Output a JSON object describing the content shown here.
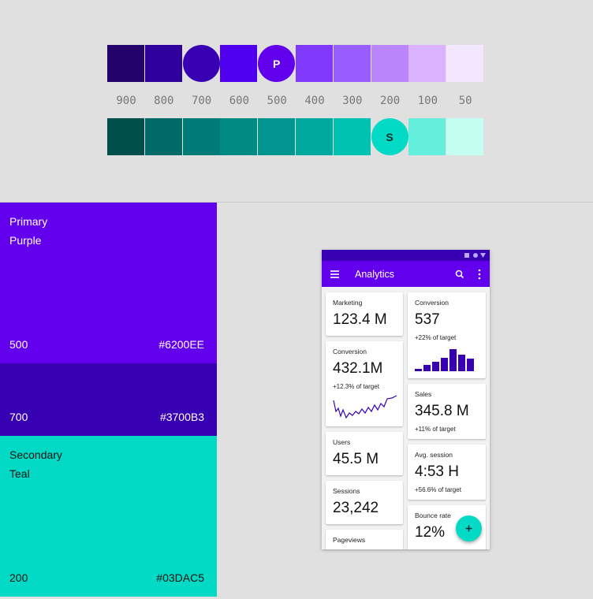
{
  "palette": {
    "levels": [
      "900",
      "800",
      "700",
      "600",
      "500",
      "400",
      "300",
      "200",
      "100",
      "50"
    ],
    "primary": [
      {
        "color": "#23036A"
      },
      {
        "color": "#30009C"
      },
      {
        "color": "#3700B3",
        "shape": "circle"
      },
      {
        "color": "#5000EE"
      },
      {
        "color": "#6200EE",
        "shape": "circle",
        "label": "P"
      },
      {
        "color": "#7F39FB"
      },
      {
        "color": "#985EFF"
      },
      {
        "color": "#BB86FC"
      },
      {
        "color": "#DBB2FF"
      },
      {
        "color": "#F2E7FE"
      }
    ],
    "secondary": [
      {
        "color": "#004F4B"
      },
      {
        "color": "#006B68"
      },
      {
        "color": "#007C78"
      },
      {
        "color": "#008A84"
      },
      {
        "color": "#00968F"
      },
      {
        "color": "#00A99E"
      },
      {
        "color": "#00C2B0"
      },
      {
        "color": "#03DAC5",
        "shape": "circle",
        "label": "S"
      },
      {
        "color": "#64EEDC"
      },
      {
        "color": "#C4FFF2"
      }
    ]
  },
  "panels": [
    {
      "title": "Primary",
      "subtitle": "Purple",
      "shade": "500",
      "hex": "#6200EE",
      "text_color": "#ffffff"
    },
    {
      "shade": "700",
      "hex": "#3700B3",
      "text_color": "#ffffff"
    },
    {
      "title": "Secondary",
      "subtitle": "Teal",
      "shade": "200",
      "hex": "#03DAC5",
      "text_color": "#111111"
    }
  ],
  "app": {
    "title": "Analytics",
    "cards": [
      [
        {
          "label": "Marketing",
          "value": "123.4 M"
        },
        {
          "label": "Conversion",
          "value": "432.1M",
          "note": "+12.3% of target",
          "chart": "line"
        },
        {
          "label": "Users",
          "value": "45.5 M"
        },
        {
          "label": "Sessions",
          "value": "23,242"
        },
        {
          "label": "Pageviews"
        }
      ],
      [
        {
          "label": "Conversion",
          "value": "537",
          "note": "+22% of target",
          "chart": "bars"
        },
        {
          "label": "Sales",
          "value": "345.8 M",
          "note": "+11% of target"
        },
        {
          "label": "Avg. session",
          "value": "4:53 H",
          "note": "+56.6% of target"
        },
        {
          "label": "Bounce rate",
          "value": "12%"
        }
      ]
    ]
  }
}
